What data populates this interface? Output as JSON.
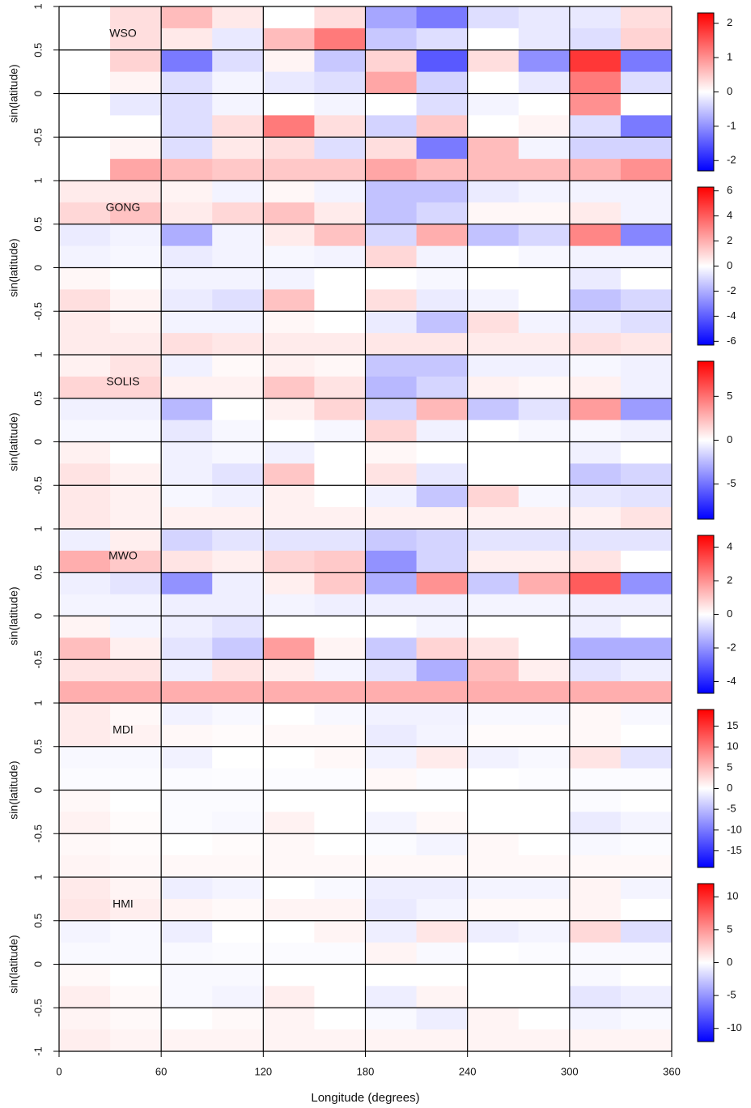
{
  "chart_data": [
    {
      "type": "heatmap",
      "title": "WSO",
      "ylabel": "sin(latitude)",
      "xlim": [
        0,
        360
      ],
      "ylim": [
        -1,
        1
      ],
      "xticks": [
        0,
        60,
        120,
        180,
        240,
        300,
        360
      ],
      "yticks": [
        -0.5,
        0,
        0.5,
        1
      ],
      "grid": true,
      "zlim": [
        -2.3,
        2.3
      ],
      "zticks": [
        -2,
        -1,
        0,
        1,
        2
      ],
      "z": [
        [
          null,
          0.3,
          0.6,
          0.2,
          0,
          0.3,
          -0.8,
          -1.2,
          -0.3,
          -0.2,
          -0.2,
          0.3
        ],
        [
          null,
          0.3,
          0.2,
          -0.2,
          0.6,
          1.2,
          -0.5,
          -0.3,
          0,
          -0.2,
          -0.3,
          0.4
        ],
        [
          null,
          0.4,
          -1.2,
          -0.3,
          0.1,
          -0.5,
          0.4,
          -1.5,
          0.3,
          -1.0,
          1.8,
          -1.2
        ],
        [
          null,
          0.1,
          -0.3,
          -0.1,
          -0.2,
          -0.3,
          0.8,
          -0.4,
          0,
          -0.2,
          1.2,
          -0.3
        ],
        [
          null,
          -0.2,
          -0.3,
          -0.1,
          0,
          -0.1,
          0,
          -0.3,
          -0.1,
          0,
          1.0,
          0
        ],
        [
          null,
          0,
          -0.3,
          0.3,
          1.2,
          0.3,
          -0.4,
          0.5,
          0,
          0.1,
          -0.3,
          -1.2
        ],
        [
          null,
          0.1,
          -0.3,
          0.2,
          0.3,
          -0.3,
          0.3,
          -1.2,
          0.6,
          -0.1,
          -0.4,
          -0.4
        ],
        [
          null,
          0.8,
          0.6,
          0.5,
          0.5,
          0.5,
          0.8,
          0.6,
          0.6,
          0.6,
          0.7,
          1.0
        ]
      ]
    },
    {
      "type": "heatmap",
      "title": "GONG",
      "ylabel": "sin(latitude)",
      "xlim": [
        0,
        360
      ],
      "ylim": [
        -1,
        1
      ],
      "xticks": [
        0,
        60,
        120,
        180,
        240,
        300,
        360
      ],
      "yticks": [
        -0.5,
        0,
        0.5,
        1
      ],
      "grid": true,
      "zlim": [
        -6.3,
        6.3
      ],
      "zticks": [
        -6,
        -4,
        -2,
        0,
        2,
        4,
        6
      ],
      "z": [
        [
          0.5,
          0.5,
          0.3,
          -0.3,
          0.2,
          -0.3,
          -1.5,
          -1.5,
          -0.5,
          -0.3,
          -0.3,
          -0.3
        ],
        [
          1.0,
          1.5,
          0.5,
          1.0,
          1.5,
          0.5,
          -1.5,
          -1.0,
          0.2,
          0.2,
          0.5,
          -0.3
        ],
        [
          -0.5,
          -0.3,
          -2.0,
          -0.3,
          0.5,
          1.5,
          -1.0,
          2.0,
          -1.5,
          -1.0,
          3.0,
          -3.0
        ],
        [
          -0.3,
          -0.2,
          -0.5,
          -0.3,
          -0.2,
          -0.3,
          1.0,
          -0.3,
          0,
          -0.2,
          -0.3,
          -0.3
        ],
        [
          0.2,
          0,
          -0.3,
          -0.3,
          -0.3,
          0,
          0,
          -0.2,
          0,
          0,
          -0.5,
          0
        ],
        [
          0.8,
          0.3,
          -0.5,
          -0.8,
          1.5,
          0,
          0.8,
          -0.5,
          -0.3,
          0,
          -1.5,
          -1.0
        ],
        [
          0.5,
          0.3,
          -0.3,
          -0.3,
          0.2,
          0,
          -0.5,
          -1.5,
          0.8,
          -0.3,
          -0.5,
          -0.8
        ],
        [
          0.5,
          0.5,
          0.8,
          0.6,
          0.5,
          0.5,
          0.6,
          0.6,
          0.5,
          0.5,
          0.8,
          0.6
        ]
      ]
    },
    {
      "type": "heatmap",
      "title": "SOLIS",
      "ylabel": "sin(latitude)",
      "xlim": [
        0,
        360
      ],
      "ylim": [
        -1,
        1
      ],
      "xticks": [
        0,
        60,
        120,
        180,
        240,
        300,
        360
      ],
      "yticks": [
        -0.5,
        0,
        0.5,
        1
      ],
      "grid": true,
      "zlim": [
        -9,
        9
      ],
      "zticks": [
        -5,
        0,
        5
      ],
      "z": [
        [
          0.5,
          1.0,
          -0.5,
          0.2,
          0.5,
          0.3,
          -2.0,
          -2.0,
          -0.5,
          -0.5,
          -0.3,
          -0.5
        ],
        [
          1.5,
          1.5,
          0.5,
          0.5,
          2.0,
          1.0,
          -2.5,
          -1.5,
          0.5,
          0.3,
          0.5,
          -0.5
        ],
        [
          -0.5,
          -0.5,
          -2.5,
          0,
          0.5,
          1.5,
          -1.5,
          2.5,
          -2.0,
          -1.0,
          3.5,
          -3.5
        ],
        [
          -0.3,
          -0.3,
          -0.8,
          -0.3,
          0,
          -0.3,
          1.5,
          -0.5,
          0,
          -0.3,
          -0.3,
          -0.5
        ],
        [
          0.5,
          0,
          -0.5,
          -0.3,
          -0.5,
          0,
          0.3,
          0,
          0,
          0,
          -0.5,
          0
        ],
        [
          1.0,
          0.5,
          -0.5,
          -1.0,
          2.0,
          0,
          1.0,
          -0.8,
          0,
          0,
          -2.0,
          -1.5
        ],
        [
          0.8,
          0.5,
          -0.3,
          -0.5,
          0.5,
          0,
          -0.5,
          -2.0,
          1.5,
          -0.3,
          -0.8,
          -1.0
        ],
        [
          0.8,
          0.5,
          0.5,
          0.5,
          0.5,
          0.5,
          0.5,
          0.5,
          0.5,
          0.5,
          0.5,
          1.0
        ]
      ]
    },
    {
      "type": "heatmap",
      "title": "MWO",
      "ylabel": "sin(latitude)",
      "xlim": [
        0,
        360
      ],
      "ylim": [
        -1,
        1
      ],
      "xticks": [
        0,
        60,
        120,
        180,
        240,
        300,
        360
      ],
      "yticks": [
        -0.5,
        0,
        0.5,
        1
      ],
      "grid": true,
      "zlim": [
        -4.7,
        4.7
      ],
      "zticks": [
        -4,
        -2,
        0,
        2,
        4
      ],
      "z": [
        [
          -0.3,
          0.3,
          -0.8,
          -0.5,
          -0.5,
          -0.5,
          -1.0,
          -0.8,
          -0.5,
          -0.5,
          -0.5,
          -0.5
        ],
        [
          1.5,
          1.0,
          0.5,
          0.3,
          0.8,
          1.0,
          -2.0,
          -0.8,
          0.3,
          0.3,
          0.5,
          0
        ],
        [
          -0.3,
          -0.5,
          -2.0,
          -0.3,
          0.3,
          1.0,
          -1.5,
          2.0,
          -1.0,
          1.5,
          3.0,
          -2.0
        ],
        [
          -0.2,
          -0.2,
          -0.3,
          -0.3,
          -0.2,
          -0.3,
          -0.3,
          -0.3,
          -0.2,
          -0.2,
          -0.3,
          -0.3
        ],
        [
          0.2,
          -0.2,
          -0.3,
          -0.5,
          0,
          0,
          0,
          -0.2,
          0,
          0,
          -0.3,
          0
        ],
        [
          1.2,
          0.3,
          -0.5,
          -1.0,
          1.8,
          0.2,
          -1.0,
          0.8,
          0.5,
          0,
          -1.5,
          -1.5
        ],
        [
          0.5,
          0.5,
          -0.3,
          0.5,
          0.3,
          -0.2,
          -0.5,
          -1.5,
          1.2,
          0.3,
          -0.5,
          -0.3
        ],
        [
          1.5,
          1.5,
          1.5,
          1.5,
          1.5,
          1.5,
          1.5,
          1.5,
          1.5,
          1.5,
          1.5,
          1.5
        ]
      ]
    },
    {
      "type": "heatmap",
      "title": "MDI",
      "ylabel": "sin(latitude)",
      "xlim": [
        0,
        360
      ],
      "ylim": [
        -1,
        1
      ],
      "xticks": [
        0,
        60,
        120,
        180,
        240,
        300,
        360
      ],
      "yticks": [
        -0.5,
        0,
        0.5,
        1
      ],
      "grid": true,
      "zlim": [
        -19,
        19
      ],
      "zticks": [
        -15,
        -10,
        -5,
        0,
        5,
        10,
        15
      ],
      "z": [
        [
          1.5,
          0.5,
          -1.0,
          -0.5,
          0,
          -0.5,
          -1.0,
          -1.0,
          -0.5,
          -0.5,
          0.5,
          -0.5
        ],
        [
          1.5,
          1.0,
          0.5,
          0.3,
          0.5,
          0.5,
          -1.5,
          -0.8,
          0.3,
          0.3,
          0.5,
          0
        ],
        [
          -0.5,
          -0.5,
          -1.0,
          0,
          0,
          0.5,
          -1.0,
          1.5,
          -1.0,
          -0.5,
          2.0,
          -2.0
        ],
        [
          -0.3,
          -0.3,
          -0.3,
          -0.2,
          -0.2,
          -0.2,
          0.5,
          -0.3,
          0,
          -0.2,
          -0.3,
          -0.3
        ],
        [
          0.5,
          0,
          -0.3,
          -0.3,
          0,
          0,
          0,
          0,
          0,
          0,
          -0.3,
          0
        ],
        [
          1.0,
          0.3,
          -0.3,
          -0.5,
          1.0,
          0,
          -0.8,
          0.5,
          0,
          0,
          -1.5,
          -0.8
        ],
        [
          0.5,
          0.3,
          0,
          0.3,
          0.5,
          0,
          -0.3,
          -0.8,
          0.5,
          0,
          -0.5,
          -0.3
        ],
        [
          0.8,
          0.5,
          0.5,
          0.5,
          0.5,
          0.5,
          0.5,
          0.5,
          0.5,
          0.5,
          0.5,
          0.5
        ]
      ]
    },
    {
      "type": "heatmap",
      "title": "HMI",
      "ylabel": "sin(latitude)",
      "xlabel": "Longitude (degrees)",
      "xlim": [
        0,
        360
      ],
      "ylim": [
        -1,
        1
      ],
      "xticks": [
        0,
        60,
        120,
        180,
        240,
        300,
        360
      ],
      "yticks": [
        -1,
        -0.5,
        0,
        0.5,
        1
      ],
      "grid": true,
      "zlim": [
        -12,
        12
      ],
      "zticks": [
        -10,
        -5,
        0,
        5,
        10
      ],
      "z": [
        [
          1.0,
          0.5,
          -0.8,
          -0.5,
          0,
          -0.3,
          -0.8,
          -0.8,
          -0.5,
          -0.5,
          0.5,
          -0.5
        ],
        [
          1.2,
          0.8,
          0.5,
          0.3,
          0.5,
          0.5,
          -1.0,
          -0.5,
          0.3,
          0.3,
          0.5,
          0
        ],
        [
          -0.5,
          -0.3,
          -0.8,
          0,
          0,
          0.5,
          -0.8,
          1.2,
          -0.8,
          -0.5,
          1.8,
          -1.5
        ],
        [
          -0.3,
          -0.3,
          -0.3,
          -0.2,
          -0.2,
          -0.2,
          0.5,
          -0.3,
          0,
          -0.2,
          -0.3,
          -0.3
        ],
        [
          0.3,
          0,
          -0.3,
          -0.3,
          0,
          0,
          0,
          0,
          0,
          0,
          -0.3,
          0
        ],
        [
          0.8,
          0.3,
          -0.3,
          -0.5,
          0.8,
          0,
          -0.8,
          0.5,
          0,
          0,
          -1.2,
          -0.8
        ],
        [
          0.5,
          0.3,
          0,
          0.3,
          0.5,
          0,
          -0.3,
          -0.8,
          0.5,
          0,
          -0.5,
          -0.3
        ],
        [
          0.8,
          0.5,
          0.5,
          0.5,
          0.5,
          0.5,
          0.5,
          0.5,
          0.5,
          0.5,
          0.5,
          0.5
        ]
      ]
    }
  ]
}
